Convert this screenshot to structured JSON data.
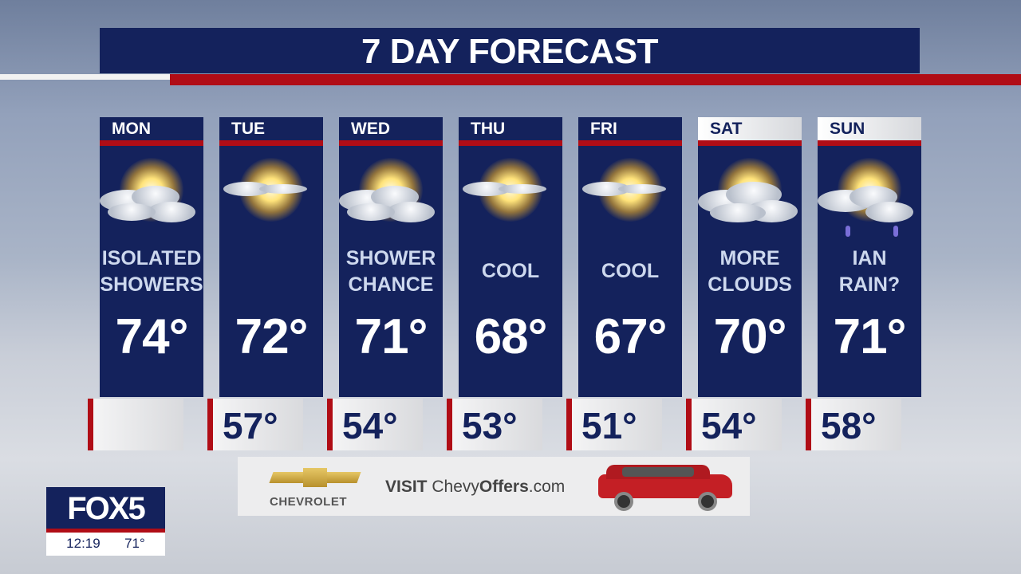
{
  "title": "7 DAY FORECAST",
  "days": [
    {
      "day": "MON",
      "icon": "sun-behind-clouds-icon",
      "cond": [
        "ISOLATED",
        "SHOWERS"
      ],
      "high": "74°",
      "low": ""
    },
    {
      "day": "TUE",
      "icon": "sunny-icon",
      "cond": [
        "",
        ""
      ],
      "high": "72°",
      "low": "57°"
    },
    {
      "day": "WED",
      "icon": "sun-behind-clouds-icon",
      "cond": [
        "SHOWER",
        "CHANCE"
      ],
      "high": "71°",
      "low": "54°"
    },
    {
      "day": "THU",
      "icon": "sunny-icon",
      "cond": [
        "COOL",
        ""
      ],
      "high": "68°",
      "low": "53°"
    },
    {
      "day": "FRI",
      "icon": "sunny-icon",
      "cond": [
        "COOL",
        ""
      ],
      "high": "67°",
      "low": "51°"
    },
    {
      "day": "SAT",
      "icon": "mostly-cloudy-icon",
      "cond": [
        "MORE",
        "CLOUDS"
      ],
      "high": "70°",
      "low": "54°"
    },
    {
      "day": "SUN",
      "icon": "clouds-rain-icon",
      "cond": [
        "IAN",
        "RAIN?"
      ],
      "high": "71°",
      "low": "58°"
    }
  ],
  "ad": {
    "brand": "CHEVROLET",
    "visit": "VISIT",
    "site_a": "Chevy",
    "site_b": "Offers",
    "site_c": ".com"
  },
  "station": {
    "logo": "FOX5",
    "time": "12:19",
    "temp": "71°"
  },
  "colors": {
    "navy": "#14225c",
    "red": "#b00d16"
  }
}
